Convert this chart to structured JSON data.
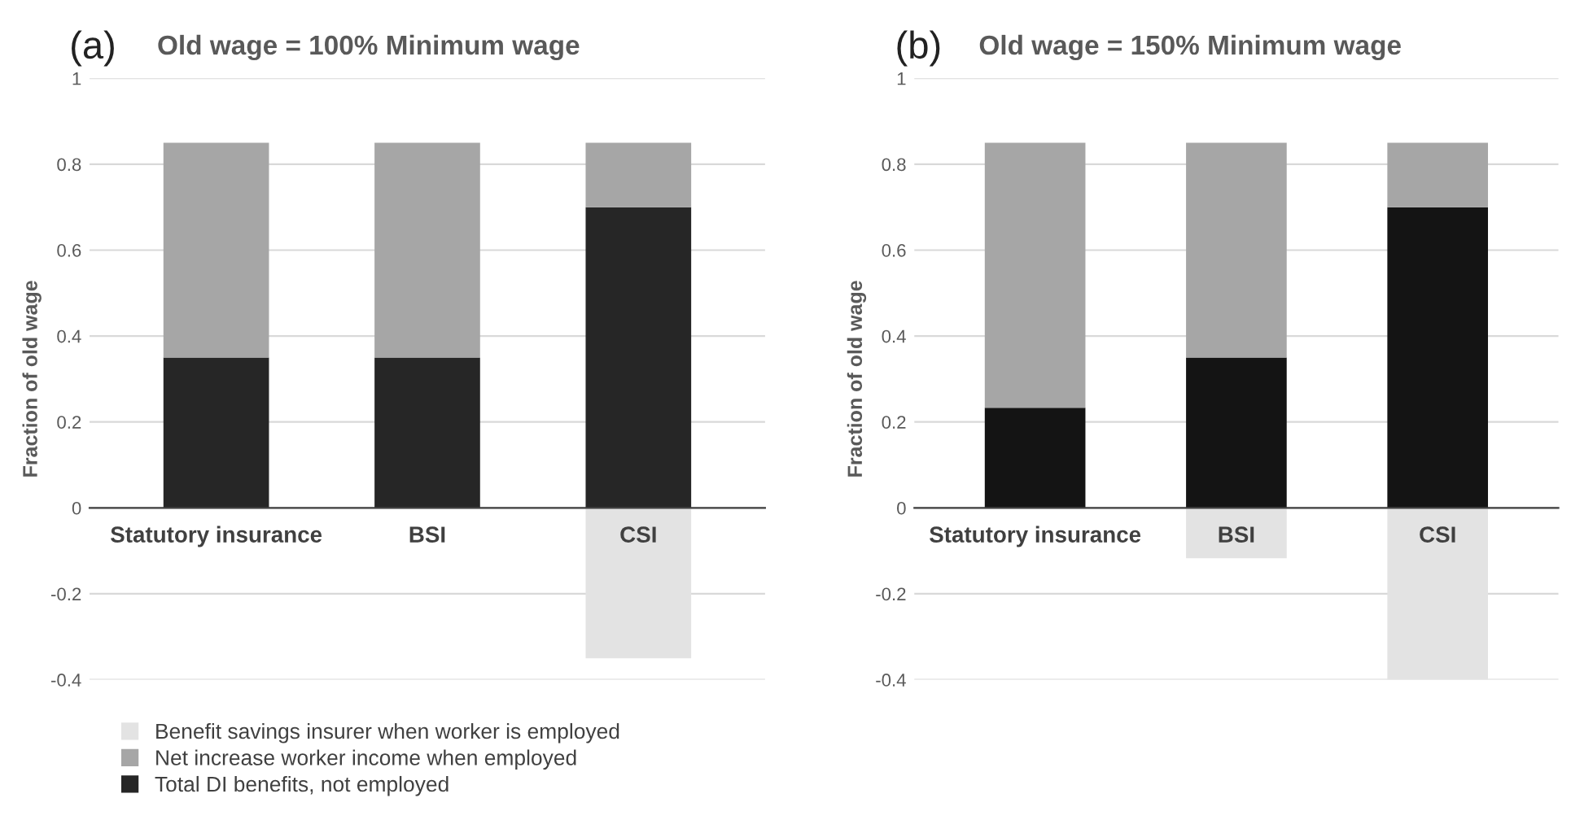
{
  "chart_data": [
    {
      "type": "bar",
      "stacked": true,
      "title": "(a)",
      "subtitle": "Old wage = 100% Minimum wage",
      "ylabel": "Fraction of old wage",
      "categories": [
        "Statutory insurance",
        "BSI",
        "CSI"
      ],
      "ylim": [
        -0.4,
        1
      ],
      "yticks": [
        -0.4,
        -0.2,
        0,
        0.2,
        0.4,
        0.6,
        0.8,
        1
      ],
      "grid": "y",
      "legend": "bottom left",
      "series": [
        {
          "name": "Total DI benefits, not employed",
          "color": "#262626",
          "values": [
            0.35,
            0.35,
            0.7
          ]
        },
        {
          "name": "Net increase worker income when employed",
          "color": "#a6a6a6",
          "values": [
            0.5,
            0.5,
            0.15
          ]
        },
        {
          "name": "Benefit savings insurer when worker is employed",
          "color": "#e3e3e3",
          "values": [
            0,
            0,
            -0.35
          ]
        }
      ]
    },
    {
      "type": "bar",
      "stacked": true,
      "title": "(b)",
      "subtitle": "Old wage = 150% Minimum wage",
      "ylabel": "Fraction of old wage",
      "categories": [
        "Statutory insurance",
        "BSI",
        "CSI"
      ],
      "ylim": [
        -0.4,
        1
      ],
      "yticks": [
        -0.4,
        -0.2,
        0,
        0.2,
        0.4,
        0.6,
        0.8,
        1
      ],
      "grid": "y",
      "series": [
        {
          "color": "#141414",
          "values": [
            0.233,
            0.35,
            0.7
          ]
        },
        {
          "color": "#a6a6a6",
          "values": [
            0.617,
            0.5,
            0.15
          ]
        },
        {
          "color": "#e3e3e3",
          "values": [
            0,
            -0.117,
            -0.4
          ]
        }
      ]
    }
  ]
}
